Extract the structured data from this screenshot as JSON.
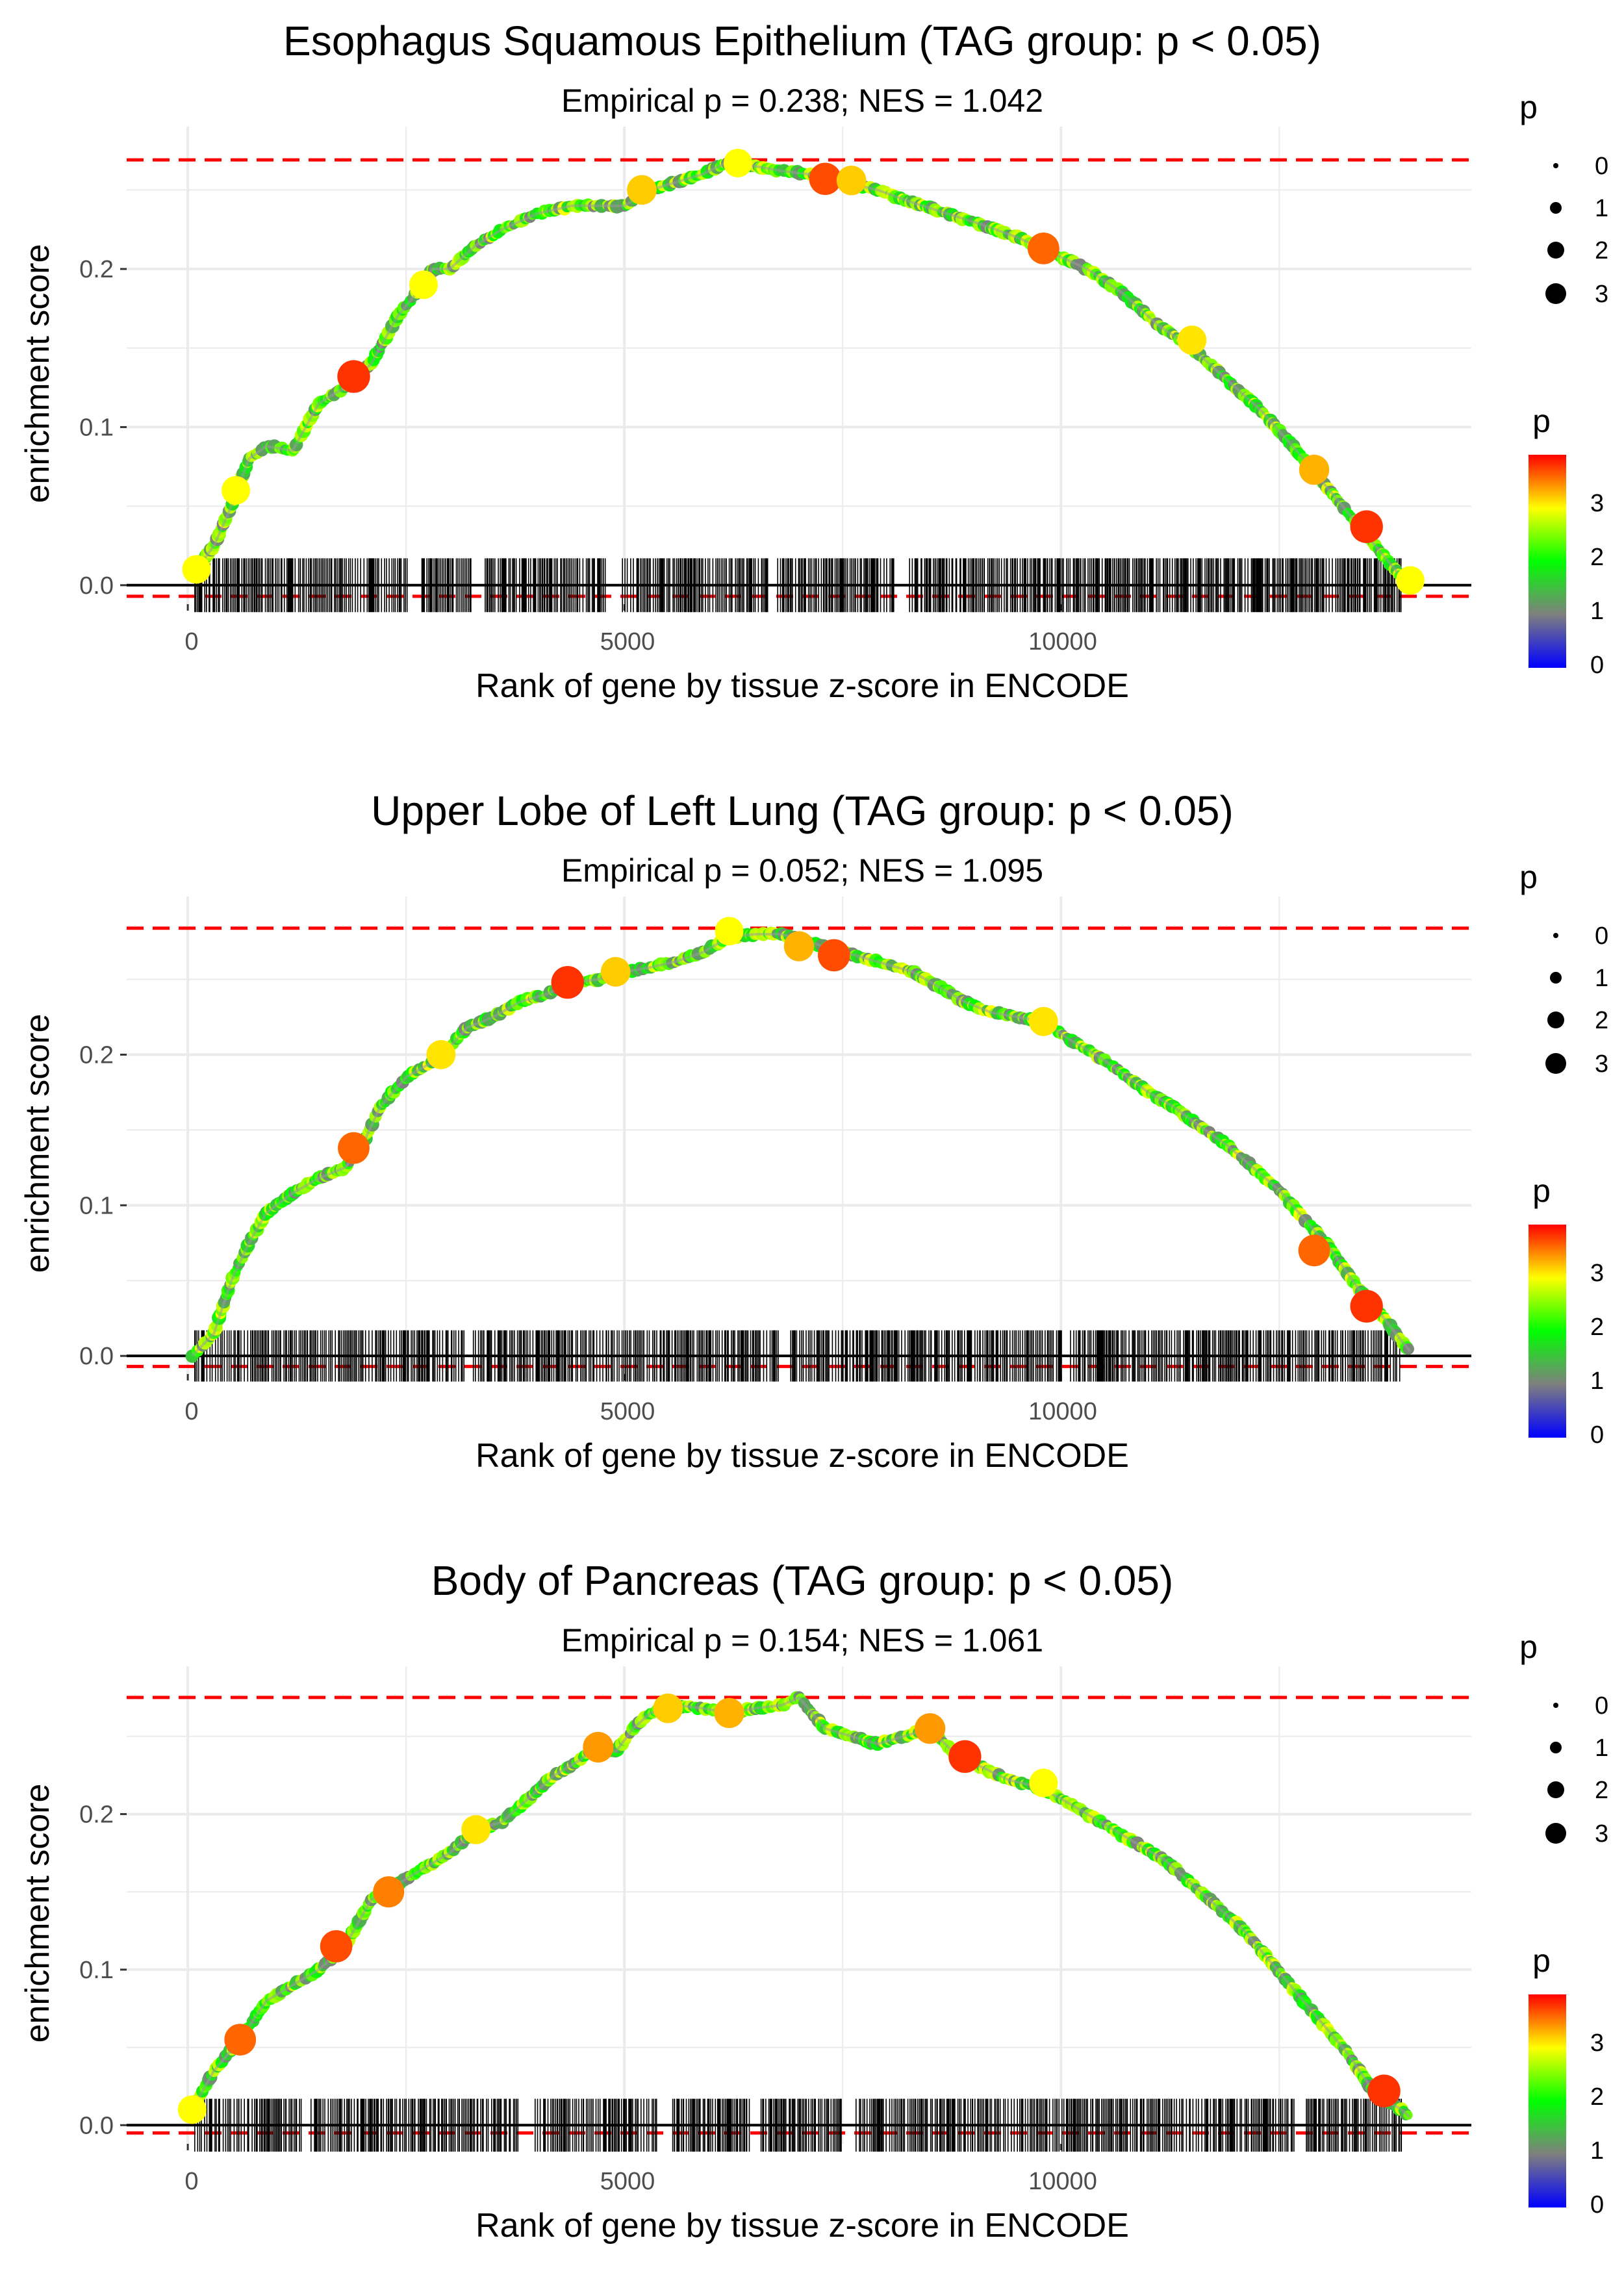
{
  "colors": {
    "threshold": "#ff0000",
    "baseline": "#000000",
    "grid": "#ebebeb",
    "barcode": "#000000",
    "gradient": [
      "#0000ff",
      "#7f7f7f",
      "#00ff00",
      "#ffff00",
      "#ff0000"
    ]
  },
  "chart_data": [
    {
      "type": "line",
      "title": "Esophagus Squamous Epithelium (TAG group: p < 0.05)",
      "subtitle": "Empirical p = 0.238; NES = 1.042",
      "xlabel": "Rank of gene by tissue z-score in ENCODE",
      "ylabel": "enrichment score",
      "xlim": [
        -700,
        14700
      ],
      "ylim": [
        -0.012,
        0.29
      ],
      "x_ticks": [
        0,
        5000,
        10000
      ],
      "x_tick_labels": [
        "0",
        "5000",
        "10000"
      ],
      "y_ticks": [
        0,
        0.1,
        0.2
      ],
      "y_tick_labels": [
        "0.0",
        "0.1",
        "0.2"
      ],
      "max_es": 0.269,
      "min_es": -0.007,
      "n_genes": 14000,
      "curve": {
        "x": [
          100,
          300,
          500,
          700,
          900,
          1200,
          1500,
          1800,
          2100,
          2400,
          2700,
          2800,
          3000,
          3300,
          3600,
          4000,
          4400,
          4800,
          5000,
          5300,
          5600,
          5900,
          6200,
          6500,
          6800,
          7100,
          7500,
          7900,
          8300,
          8700,
          9100,
          9500,
          9900,
          10300,
          10700,
          11100,
          11500,
          11900,
          12300,
          12700,
          13000,
          13300,
          13600,
          13900,
          14000
        ],
        "y": [
          0.01,
          0.025,
          0.05,
          0.08,
          0.088,
          0.085,
          0.115,
          0.125,
          0.14,
          0.17,
          0.19,
          0.2,
          0.2,
          0.215,
          0.225,
          0.235,
          0.24,
          0.24,
          0.24,
          0.25,
          0.255,
          0.26,
          0.268,
          0.265,
          0.262,
          0.26,
          0.255,
          0.25,
          0.242,
          0.235,
          0.228,
          0.22,
          0.21,
          0.2,
          0.185,
          0.165,
          0.15,
          0.13,
          0.11,
          0.085,
          0.065,
          0.045,
          0.025,
          0.005,
          0.0
        ]
      },
      "highlights": [
        {
          "x": 100,
          "y": 0.01,
          "p": 3.0
        },
        {
          "x": 550,
          "y": 0.06,
          "p": 3.0
        },
        {
          "x": 1900,
          "y": 0.132,
          "p": 3.8
        },
        {
          "x": 2700,
          "y": 0.19,
          "p": 3.0
        },
        {
          "x": 5200,
          "y": 0.25,
          "p": 3.2
        },
        {
          "x": 6300,
          "y": 0.267,
          "p": 3.0
        },
        {
          "x": 7300,
          "y": 0.257,
          "p": 3.7
        },
        {
          "x": 7600,
          "y": 0.256,
          "p": 3.2
        },
        {
          "x": 9800,
          "y": 0.213,
          "p": 3.6
        },
        {
          "x": 11500,
          "y": 0.155,
          "p": 3.1
        },
        {
          "x": 12900,
          "y": 0.073,
          "p": 3.3
        },
        {
          "x": 13500,
          "y": 0.037,
          "p": 3.8
        },
        {
          "x": 14000,
          "y": 0.003,
          "p": 3.0
        }
      ],
      "barcode_gaps": [
        [
          2500,
          2650
        ],
        [
          3250,
          3400
        ],
        [
          4800,
          4950
        ],
        [
          6650,
          6750
        ],
        [
          8100,
          8250
        ]
      ],
      "legend": {
        "size": {
          "title": "p",
          "labels": [
            "0",
            "1",
            "2",
            "3"
          ]
        },
        "color": {
          "title": "p",
          "labels": [
            "3",
            "2",
            "1",
            "0"
          ]
        }
      }
    },
    {
      "type": "line",
      "title": "Upper Lobe of Left Lung (TAG group: p < 0.05)",
      "subtitle": "Empirical p = 0.052; NES = 1.095",
      "xlabel": "Rank of gene by tissue z-score in ENCODE",
      "ylabel": "enrichment score",
      "xlim": [
        -700,
        14700
      ],
      "ylim": [
        -0.012,
        0.305
      ],
      "x_ticks": [
        0,
        5000,
        10000
      ],
      "x_tick_labels": [
        "0",
        "5000",
        "10000"
      ],
      "y_ticks": [
        0,
        0.1,
        0.2
      ],
      "y_tick_labels": [
        "0.0",
        "0.1",
        "0.2"
      ],
      "max_es": 0.284,
      "min_es": -0.007,
      "n_genes": 14000,
      "curve": {
        "x": [
          50,
          300,
          500,
          700,
          900,
          1200,
          1500,
          1800,
          2000,
          2200,
          2500,
          2800,
          3000,
          3200,
          3500,
          3800,
          4100,
          4400,
          4700,
          5000,
          5300,
          5600,
          5900,
          6200,
          6500,
          6800,
          7100,
          7400,
          7700,
          8000,
          8300,
          8600,
          8900,
          9200,
          9500,
          9800,
          10100,
          10400,
          10700,
          11000,
          11300,
          11600,
          11900,
          12200,
          12500,
          12800,
          13100,
          13400,
          13700,
          13900,
          14000
        ],
        "y": [
          0.0,
          0.015,
          0.05,
          0.075,
          0.095,
          0.108,
          0.118,
          0.125,
          0.14,
          0.165,
          0.185,
          0.195,
          0.205,
          0.218,
          0.225,
          0.235,
          0.24,
          0.248,
          0.25,
          0.255,
          0.258,
          0.262,
          0.268,
          0.278,
          0.28,
          0.28,
          0.275,
          0.27,
          0.265,
          0.26,
          0.255,
          0.245,
          0.235,
          0.228,
          0.225,
          0.222,
          0.21,
          0.2,
          0.188,
          0.175,
          0.165,
          0.152,
          0.14,
          0.125,
          0.11,
          0.09,
          0.07,
          0.045,
          0.025,
          0.01,
          0.003
        ]
      },
      "highlights": [
        {
          "x": 1900,
          "y": 0.138,
          "p": 3.6
        },
        {
          "x": 2900,
          "y": 0.2,
          "p": 3.1
        },
        {
          "x": 4350,
          "y": 0.248,
          "p": 3.8
        },
        {
          "x": 4900,
          "y": 0.255,
          "p": 3.2
        },
        {
          "x": 6200,
          "y": 0.282,
          "p": 3.0
        },
        {
          "x": 7000,
          "y": 0.272,
          "p": 3.3
        },
        {
          "x": 7400,
          "y": 0.266,
          "p": 3.7
        },
        {
          "x": 9800,
          "y": 0.222,
          "p": 3.1
        },
        {
          "x": 12900,
          "y": 0.07,
          "p": 3.6
        },
        {
          "x": 13500,
          "y": 0.033,
          "p": 3.8
        }
      ],
      "barcode_gaps": [
        [
          3150,
          3250
        ],
        [
          6750,
          6900
        ],
        [
          10000,
          10100
        ]
      ],
      "legend": {
        "size": {
          "title": "p",
          "labels": [
            "0",
            "1",
            "2",
            "3"
          ]
        },
        "color": {
          "title": "p",
          "labels": [
            "3",
            "2",
            "1",
            "0"
          ]
        }
      }
    },
    {
      "type": "line",
      "title": "Body of Pancreas (TAG group: p < 0.05)",
      "subtitle": "Empirical p = 0.154; NES = 1.061",
      "xlabel": "Rank of gene by tissue z-score in ENCODE",
      "ylabel": "enrichment score",
      "xlim": [
        -700,
        14700
      ],
      "ylim": [
        -0.012,
        0.295
      ],
      "x_ticks": [
        0,
        5000,
        10000
      ],
      "x_tick_labels": [
        "0",
        "5000",
        "10000"
      ],
      "y_ticks": [
        0,
        0.1,
        0.2
      ],
      "y_tick_labels": [
        "0.0",
        "0.1",
        "0.2"
      ],
      "max_es": 0.275,
      "min_es": -0.005,
      "n_genes": 14000,
      "curve": {
        "x": [
          50,
          300,
          600,
          900,
          1200,
          1500,
          1800,
          2100,
          2400,
          2700,
          3000,
          3300,
          3600,
          3900,
          4200,
          4500,
          4700,
          4900,
          5100,
          5300,
          5600,
          5900,
          6200,
          6500,
          6800,
          7000,
          7300,
          7600,
          7900,
          8200,
          8500,
          8800,
          9100,
          9400,
          9700,
          10000,
          10300,
          10600,
          10900,
          11200,
          11500,
          11800,
          12100,
          12400,
          12700,
          13000,
          13300,
          13600,
          13900,
          14000
        ],
        "y": [
          0.01,
          0.035,
          0.055,
          0.08,
          0.09,
          0.1,
          0.115,
          0.145,
          0.155,
          0.165,
          0.175,
          0.19,
          0.195,
          0.21,
          0.225,
          0.235,
          0.245,
          0.24,
          0.255,
          0.265,
          0.27,
          0.268,
          0.265,
          0.268,
          0.27,
          0.275,
          0.255,
          0.25,
          0.245,
          0.25,
          0.255,
          0.238,
          0.23,
          0.222,
          0.218,
          0.21,
          0.2,
          0.19,
          0.18,
          0.17,
          0.155,
          0.14,
          0.125,
          0.105,
          0.085,
          0.065,
          0.045,
          0.02,
          0.01,
          0.005
        ]
      },
      "highlights": [
        {
          "x": 50,
          "y": 0.01,
          "p": 3.0
        },
        {
          "x": 600,
          "y": 0.055,
          "p": 3.6
        },
        {
          "x": 1700,
          "y": 0.115,
          "p": 3.7
        },
        {
          "x": 2300,
          "y": 0.15,
          "p": 3.5
        },
        {
          "x": 3300,
          "y": 0.19,
          "p": 3.1
        },
        {
          "x": 4700,
          "y": 0.243,
          "p": 3.4
        },
        {
          "x": 5500,
          "y": 0.268,
          "p": 3.2
        },
        {
          "x": 6200,
          "y": 0.265,
          "p": 3.3
        },
        {
          "x": 8500,
          "y": 0.255,
          "p": 3.4
        },
        {
          "x": 8900,
          "y": 0.237,
          "p": 3.8
        },
        {
          "x": 9800,
          "y": 0.22,
          "p": 3.0
        },
        {
          "x": 13700,
          "y": 0.022,
          "p": 3.8
        }
      ],
      "barcode_gaps": [
        [
          1300,
          1400
        ],
        [
          3800,
          3950
        ],
        [
          5400,
          5550
        ],
        [
          6450,
          6550
        ],
        [
          7500,
          7650
        ],
        [
          12650,
          12800
        ]
      ],
      "legend": {
        "size": {
          "title": "p",
          "labels": [
            "0",
            "1",
            "2",
            "3"
          ]
        },
        "color": {
          "title": "p",
          "labels": [
            "3",
            "2",
            "1",
            "0"
          ]
        }
      }
    }
  ]
}
